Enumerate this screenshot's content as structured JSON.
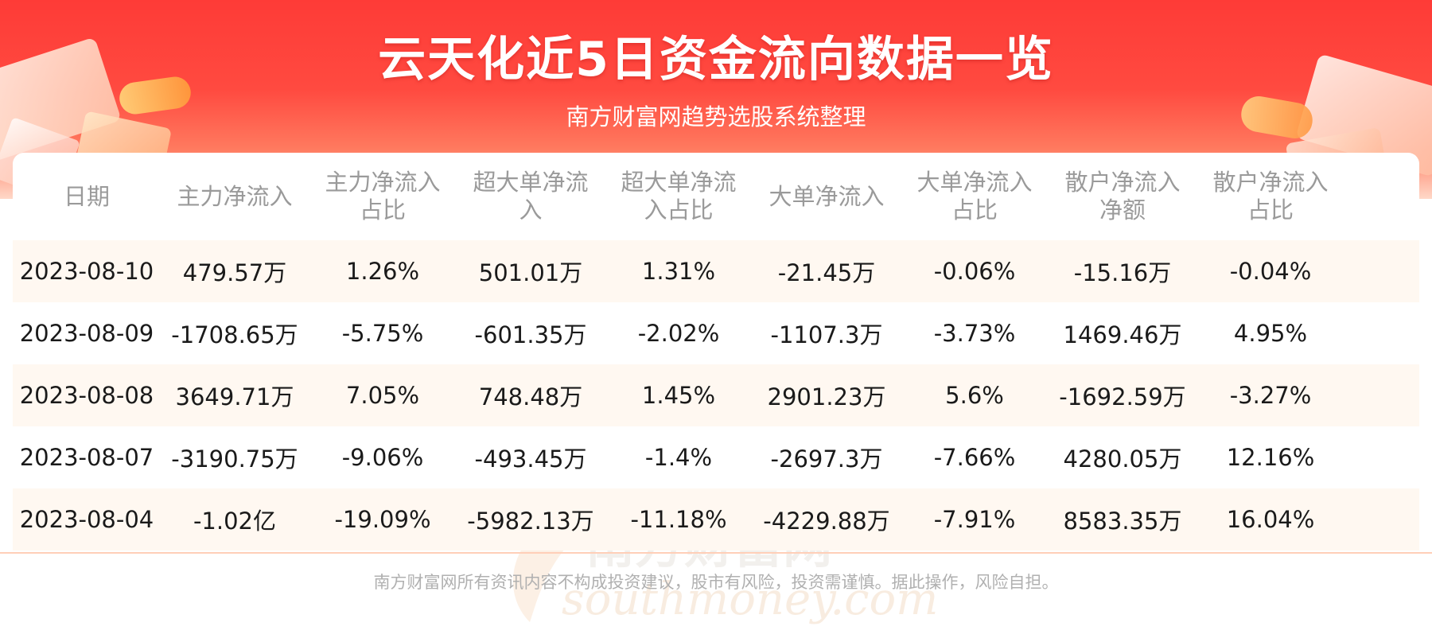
{
  "title": "云天化近5日资金流向数据一览",
  "subtitle": "南方财富网趋势选股系统整理",
  "table": {
    "headers": [
      "日期",
      "主力净流入",
      "主力净流入占比",
      "超大单净流入",
      "超大单净流入占比",
      "大单净流入",
      "大单净流入占比",
      "散户净流入净额",
      "散户净流入占比"
    ],
    "rows": [
      [
        "2023-08-10",
        "479.57万",
        "1.26%",
        "501.01万",
        "1.31%",
        "-21.45万",
        "-0.06%",
        "-15.16万",
        "-0.04%"
      ],
      [
        "2023-08-09",
        "-1708.65万",
        "-5.75%",
        "-601.35万",
        "-2.02%",
        "-1107.3万",
        "-3.73%",
        "1469.46万",
        "4.95%"
      ],
      [
        "2023-08-08",
        "3649.71万",
        "7.05%",
        "748.48万",
        "1.45%",
        "2901.23万",
        "5.6%",
        "-1692.59万",
        "-3.27%"
      ],
      [
        "2023-08-07",
        "-3190.75万",
        "-9.06%",
        "-493.45万",
        "-1.4%",
        "-2697.3万",
        "-7.66%",
        "4280.05万",
        "12.16%"
      ],
      [
        "2023-08-04",
        "-1.02亿",
        "-19.09%",
        "-5982.13万",
        "-11.18%",
        "-4229.88万",
        "-7.91%",
        "8583.35万",
        "16.04%"
      ]
    ]
  },
  "watermark": {
    "cn": "南方财富网",
    "en": "southmoney.com"
  },
  "disclaimer": "南方财富网所有资讯内容不构成投资建议，股市有风险，投资需谨慎。据此操作，风险自担。",
  "colors": {
    "header_red": "#fe3b37",
    "row_tint": "#fff8f1",
    "header_text": "#9a9a9a",
    "body_text": "#1a1a1a"
  }
}
